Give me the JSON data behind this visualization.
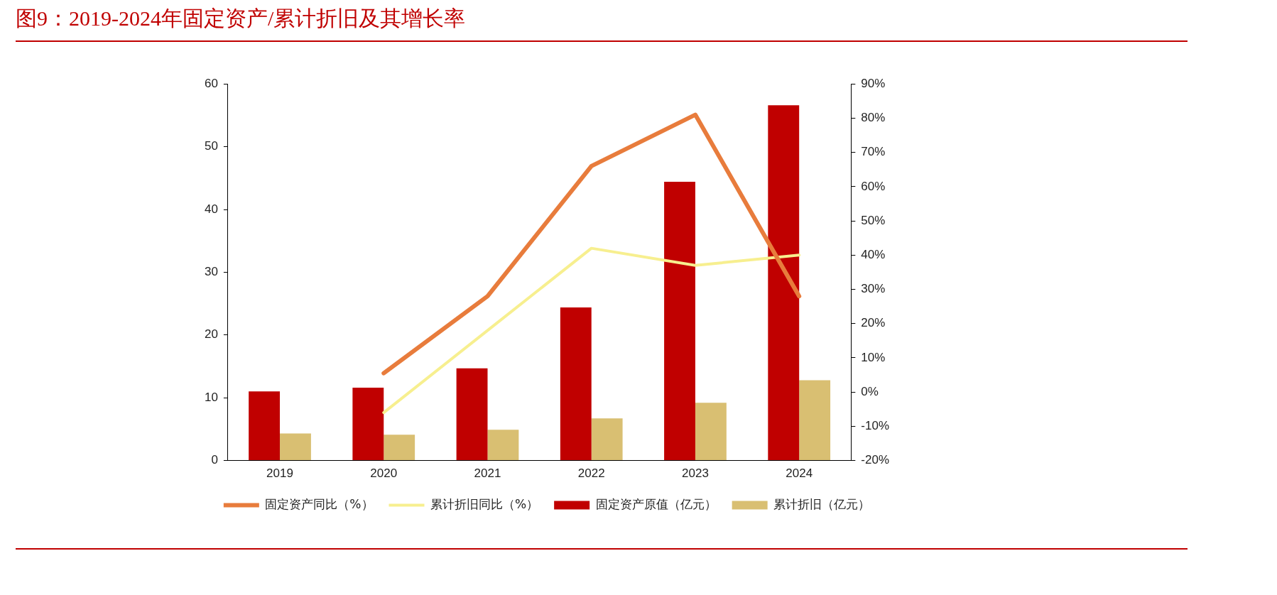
{
  "chart_data": {
    "type": "bar",
    "title": "图9：2019-2024年固定资产/累计折旧及其增长率",
    "categories": [
      "2019",
      "2020",
      "2021",
      "2022",
      "2023",
      "2024"
    ],
    "series": [
      {
        "name": "固定资产原值（亿元）",
        "color": "#c00000",
        "values": [
          11.0,
          11.6,
          14.7,
          24.4,
          44.4,
          56.6
        ]
      },
      {
        "name": "累计折旧（亿元）",
        "color": "#d9bf72",
        "values": [
          4.3,
          4.1,
          4.9,
          6.7,
          9.2,
          12.8
        ]
      },
      {
        "name": "固定资产同比（%）",
        "type": "line",
        "axis": "y2",
        "color": "#e87c3c",
        "values": [
          null,
          5.5,
          28,
          66,
          81,
          28
        ]
      },
      {
        "name": "累计折旧同比（%）",
        "type": "line",
        "axis": "y2",
        "color": "#f7ef8f",
        "values": [
          null,
          -6,
          18,
          42,
          37,
          40
        ]
      }
    ],
    "ylim": [
      0,
      60
    ],
    "yticks": [
      0,
      10,
      20,
      30,
      40,
      50,
      60
    ],
    "y2lim": [
      -20,
      90
    ],
    "y2ticks": [
      {
        "value": -20,
        "label": "-20%"
      },
      {
        "value": -10,
        "label": "-10%"
      },
      {
        "value": 0,
        "label": "0%"
      },
      {
        "value": 10,
        "label": "10%"
      },
      {
        "value": 20,
        "label": "20%"
      },
      {
        "value": 30,
        "label": "30%"
      },
      {
        "value": 40,
        "label": "40%"
      },
      {
        "value": 50,
        "label": "50%"
      },
      {
        "value": 60,
        "label": "60%"
      },
      {
        "value": 70,
        "label": "70%"
      },
      {
        "value": 80,
        "label": "80%"
      },
      {
        "value": 90,
        "label": "90%"
      }
    ],
    "grid": false,
    "legend": "bottom"
  }
}
